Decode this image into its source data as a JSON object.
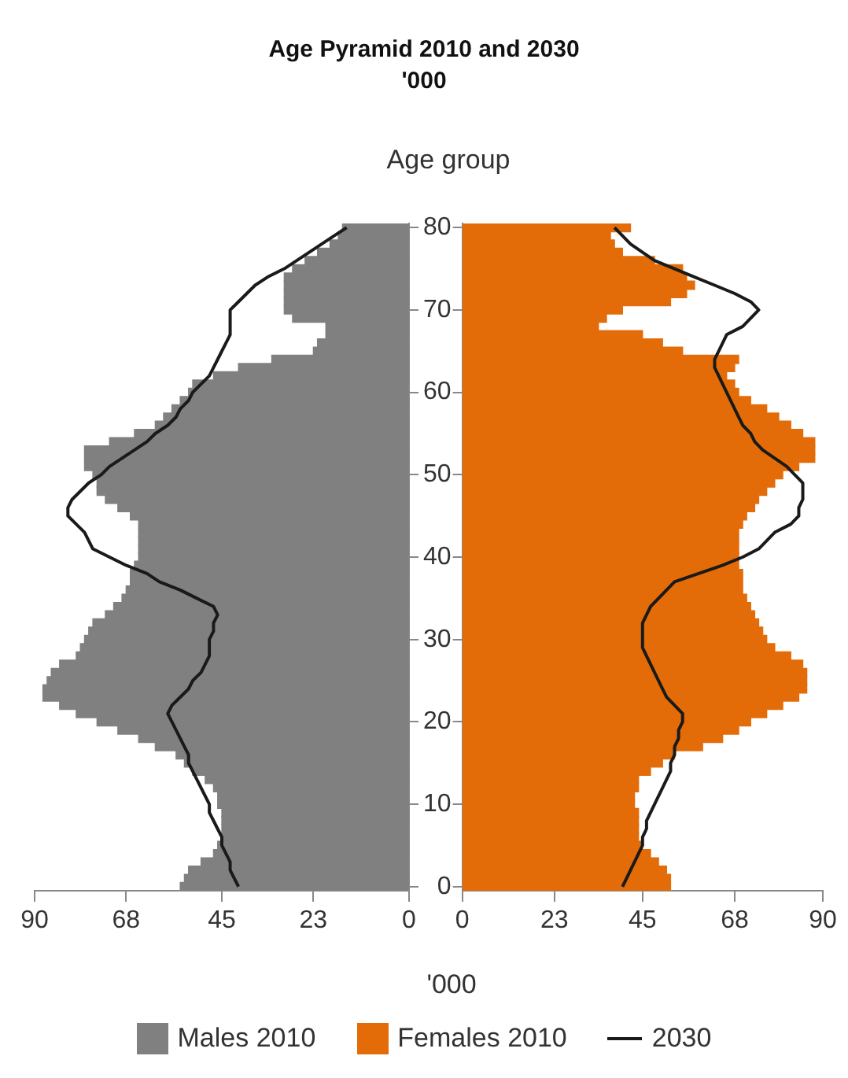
{
  "chart_data": [
    {
      "type": "bar",
      "orientation": "horizontal",
      "title": "Age Pyramid 2010 and 2030\n'000",
      "categories": [
        "80",
        null,
        null,
        null,
        null,
        null,
        null,
        null,
        null,
        null,
        "70",
        null,
        null,
        null,
        null,
        null,
        null,
        null,
        null,
        null,
        "60",
        null,
        null,
        null,
        null,
        null,
        null,
        null,
        null,
        null,
        "50",
        null,
        null,
        null,
        null,
        null,
        null,
        null,
        null,
        null,
        "40",
        null,
        null,
        null,
        null,
        null,
        null,
        null,
        null,
        null,
        "30",
        null,
        null,
        null,
        null,
        null,
        null,
        null,
        null,
        null,
        "20",
        null,
        null,
        null,
        null,
        null,
        null,
        null,
        null,
        null,
        "10",
        null,
        null,
        null,
        null,
        null,
        null,
        null,
        null,
        null,
        "0"
      ],
      "series": [
        {
          "name": "Males 2010",
          "color": "#808080",
          "values": [
            16,
            17,
            19,
            22,
            25,
            28,
            30,
            30,
            30,
            30,
            30,
            28,
            20,
            20,
            22,
            23,
            33,
            41,
            47,
            52,
            53,
            55,
            57,
            59,
            61,
            66,
            72,
            78,
            78,
            78,
            76,
            75,
            75,
            73,
            70,
            67,
            65,
            65,
            65,
            65,
            65,
            66,
            67,
            67,
            68,
            69,
            71,
            73,
            76,
            77,
            78,
            79,
            80,
            84,
            86,
            87,
            88,
            88,
            84,
            80,
            75,
            70,
            65,
            61,
            56,
            54,
            52,
            49,
            47,
            46,
            46,
            45,
            45,
            45,
            45,
            46,
            47,
            50,
            53,
            54,
            55
          ]
        },
        {
          "type": "line",
          "color": "#1a1a1a",
          "values": [
            15,
            18,
            21,
            24,
            27,
            30,
            34,
            37,
            39,
            41,
            43,
            43,
            43,
            43,
            44,
            45,
            46,
            47,
            48,
            50,
            52,
            53,
            55,
            56,
            58,
            61,
            63,
            66,
            69,
            72,
            74,
            77,
            79,
            81,
            82,
            82,
            80,
            78,
            77,
            76,
            72,
            68,
            63,
            60,
            55,
            51,
            47,
            46,
            47,
            47,
            48,
            48,
            48,
            49,
            50,
            52,
            53,
            55,
            57,
            58,
            57,
            56,
            55,
            54,
            53,
            53,
            52,
            51,
            50,
            49,
            48,
            48,
            47,
            46,
            45,
            45,
            44,
            43,
            43,
            42,
            41
          ]
        }
      ],
      "xlim": [
        90,
        0
      ],
      "xticks": [
        90,
        68,
        45,
        23,
        0
      ],
      "tick_labels": "x",
      "grid": false,
      "legend": "bottom"
    },
    {
      "type": "bar",
      "orientation": "horizontal",
      "xlabel": "'000",
      "ylabel": "Age group",
      "categories": [
        "80",
        null,
        null,
        null,
        null,
        null,
        null,
        null,
        null,
        null,
        "70",
        null,
        null,
        null,
        null,
        null,
        null,
        null,
        null,
        null,
        "60",
        null,
        null,
        null,
        null,
        null,
        null,
        null,
        null,
        null,
        "50",
        null,
        null,
        null,
        null,
        null,
        null,
        null,
        null,
        null,
        "40",
        null,
        null,
        null,
        null,
        null,
        null,
        null,
        null,
        null,
        "30",
        null,
        null,
        null,
        null,
        null,
        null,
        null,
        null,
        null,
        "20",
        null,
        null,
        null,
        null,
        null,
        null,
        null,
        null,
        null,
        "10",
        null,
        null,
        null,
        null,
        null,
        null,
        null,
        null,
        null,
        "0"
      ],
      "series": [
        {
          "name": "Females 2010",
          "color": "#e36c09",
          "values": [
            42,
            37,
            38,
            40,
            48,
            55,
            56,
            58,
            56,
            52,
            40,
            36,
            34,
            45,
            50,
            55,
            69,
            68,
            66,
            68,
            69,
            72,
            76,
            79,
            82,
            85,
            88,
            88,
            88,
            84,
            80,
            78,
            76,
            74,
            73,
            71,
            70,
            69,
            69,
            69,
            69,
            69,
            70,
            70,
            70,
            71,
            72,
            73,
            74,
            75,
            76,
            78,
            82,
            85,
            86,
            86,
            86,
            84,
            80,
            76,
            72,
            69,
            65,
            60,
            53,
            50,
            47,
            44,
            44,
            43,
            43,
            44,
            44,
            44,
            44,
            45,
            47,
            49,
            51,
            52,
            52
          ]
        },
        {
          "type": "line",
          "name": "2030",
          "color": "#1a1a1a",
          "values": [
            38,
            40,
            42,
            45,
            48,
            53,
            58,
            63,
            68,
            72,
            74,
            72,
            70,
            66,
            65,
            64,
            63,
            63,
            64,
            65,
            66,
            67,
            68,
            69,
            70,
            72,
            73,
            75,
            78,
            81,
            83,
            85,
            85,
            85,
            84,
            84,
            82,
            78,
            76,
            74,
            70,
            65,
            59,
            53,
            51,
            49,
            47,
            46,
            45,
            45,
            45,
            45,
            46,
            47,
            48,
            49,
            50,
            51,
            53,
            55,
            55,
            54,
            54,
            53,
            53,
            52,
            52,
            51,
            50,
            49,
            48,
            47,
            46,
            46,
            45,
            45,
            44,
            43,
            42,
            41,
            40
          ]
        }
      ],
      "xlim": [
        0,
        90
      ],
      "xticks": [
        0,
        23,
        45,
        68,
        90
      ],
      "grid": false,
      "legend": "bottom"
    }
  ]
}
